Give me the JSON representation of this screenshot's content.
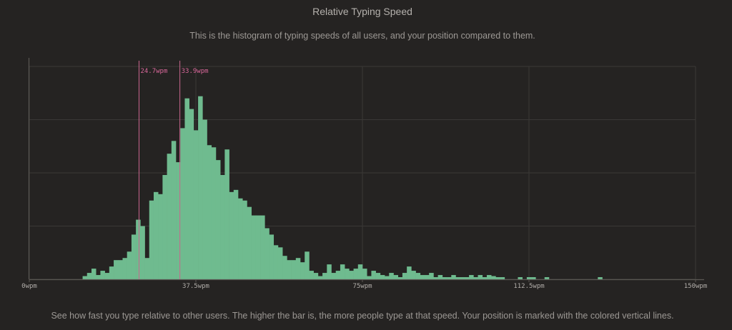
{
  "header": {
    "title": "Relative Typing Speed",
    "subtitle": "This is the histogram of typing speeds of all users, and your position compared to them."
  },
  "footer": {
    "text": "See how fast you type relative to other users. The higher the bar is, the more people type at that speed. Your position is marked with the colored vertical lines."
  },
  "colors": {
    "bar": "#6fbb8f",
    "marker": "#c9668e",
    "grid": "#3a3836",
    "axis": "#5a5753"
  },
  "chart_data": {
    "type": "bar",
    "xlabel": "",
    "ylabel": "",
    "xlim": [
      0,
      150
    ],
    "ylim": [
      0,
      100
    ],
    "bin_width": 1,
    "grid": true,
    "x_ticks": [
      {
        "value": 0,
        "label": "0wpm"
      },
      {
        "value": 37.5,
        "label": "37.5wpm"
      },
      {
        "value": 75,
        "label": "75wpm"
      },
      {
        "value": 112.5,
        "label": "112.5wpm"
      },
      {
        "value": 150,
        "label": "150wpm"
      }
    ],
    "markers": [
      {
        "value": 24.7,
        "label": "24.7wpm"
      },
      {
        "value": 33.9,
        "label": "33.9wpm"
      }
    ],
    "bins": [
      {
        "x": 12,
        "y": 1.5
      },
      {
        "x": 13,
        "y": 3
      },
      {
        "x": 14,
        "y": 5
      },
      {
        "x": 15,
        "y": 2
      },
      {
        "x": 16,
        "y": 4
      },
      {
        "x": 17,
        "y": 3
      },
      {
        "x": 18,
        "y": 6
      },
      {
        "x": 19,
        "y": 9
      },
      {
        "x": 20,
        "y": 9
      },
      {
        "x": 21,
        "y": 10
      },
      {
        "x": 22,
        "y": 13
      },
      {
        "x": 23,
        "y": 21
      },
      {
        "x": 24,
        "y": 28
      },
      {
        "x": 25,
        "y": 25
      },
      {
        "x": 26,
        "y": 10
      },
      {
        "x": 27,
        "y": 37
      },
      {
        "x": 28,
        "y": 41
      },
      {
        "x": 29,
        "y": 40
      },
      {
        "x": 30,
        "y": 49
      },
      {
        "x": 31,
        "y": 59
      },
      {
        "x": 32,
        "y": 65
      },
      {
        "x": 33,
        "y": 55
      },
      {
        "x": 34,
        "y": 71
      },
      {
        "x": 35,
        "y": 85
      },
      {
        "x": 36,
        "y": 80
      },
      {
        "x": 37,
        "y": 70
      },
      {
        "x": 38,
        "y": 86
      },
      {
        "x": 39,
        "y": 75
      },
      {
        "x": 40,
        "y": 63
      },
      {
        "x": 41,
        "y": 62
      },
      {
        "x": 42,
        "y": 56
      },
      {
        "x": 43,
        "y": 49
      },
      {
        "x": 44,
        "y": 61
      },
      {
        "x": 45,
        "y": 41
      },
      {
        "x": 46,
        "y": 42
      },
      {
        "x": 47,
        "y": 38
      },
      {
        "x": 48,
        "y": 37
      },
      {
        "x": 49,
        "y": 34
      },
      {
        "x": 50,
        "y": 30
      },
      {
        "x": 51,
        "y": 30
      },
      {
        "x": 52,
        "y": 30
      },
      {
        "x": 53,
        "y": 24
      },
      {
        "x": 54,
        "y": 21
      },
      {
        "x": 55,
        "y": 16
      },
      {
        "x": 56,
        "y": 15
      },
      {
        "x": 57,
        "y": 11
      },
      {
        "x": 58,
        "y": 9
      },
      {
        "x": 59,
        "y": 9
      },
      {
        "x": 60,
        "y": 10
      },
      {
        "x": 61,
        "y": 8
      },
      {
        "x": 62,
        "y": 13
      },
      {
        "x": 63,
        "y": 4
      },
      {
        "x": 64,
        "y": 3
      },
      {
        "x": 65,
        "y": 1.5
      },
      {
        "x": 66,
        "y": 3
      },
      {
        "x": 67,
        "y": 7
      },
      {
        "x": 68,
        "y": 3
      },
      {
        "x": 69,
        "y": 4
      },
      {
        "x": 70,
        "y": 7
      },
      {
        "x": 71,
        "y": 5
      },
      {
        "x": 72,
        "y": 4
      },
      {
        "x": 73,
        "y": 5
      },
      {
        "x": 74,
        "y": 7
      },
      {
        "x": 75,
        "y": 5
      },
      {
        "x": 76,
        "y": 1.5
      },
      {
        "x": 77,
        "y": 4
      },
      {
        "x": 78,
        "y": 3
      },
      {
        "x": 79,
        "y": 2
      },
      {
        "x": 80,
        "y": 1.5
      },
      {
        "x": 81,
        "y": 3
      },
      {
        "x": 82,
        "y": 2
      },
      {
        "x": 83,
        "y": 1
      },
      {
        "x": 84,
        "y": 3
      },
      {
        "x": 85,
        "y": 6
      },
      {
        "x": 86,
        "y": 4
      },
      {
        "x": 87,
        "y": 3
      },
      {
        "x": 88,
        "y": 2
      },
      {
        "x": 89,
        "y": 2
      },
      {
        "x": 90,
        "y": 3
      },
      {
        "x": 91,
        "y": 1
      },
      {
        "x": 92,
        "y": 2
      },
      {
        "x": 93,
        "y": 1
      },
      {
        "x": 94,
        "y": 1
      },
      {
        "x": 95,
        "y": 2
      },
      {
        "x": 96,
        "y": 1
      },
      {
        "x": 97,
        "y": 1
      },
      {
        "x": 98,
        "y": 1
      },
      {
        "x": 99,
        "y": 2
      },
      {
        "x": 100,
        "y": 1
      },
      {
        "x": 101,
        "y": 2
      },
      {
        "x": 102,
        "y": 1
      },
      {
        "x": 103,
        "y": 2
      },
      {
        "x": 104,
        "y": 1.5
      },
      {
        "x": 105,
        "y": 1
      },
      {
        "x": 106,
        "y": 1
      },
      {
        "x": 110,
        "y": 1
      },
      {
        "x": 112,
        "y": 1
      },
      {
        "x": 113,
        "y": 1
      },
      {
        "x": 116,
        "y": 1
      },
      {
        "x": 128,
        "y": 1
      }
    ]
  }
}
